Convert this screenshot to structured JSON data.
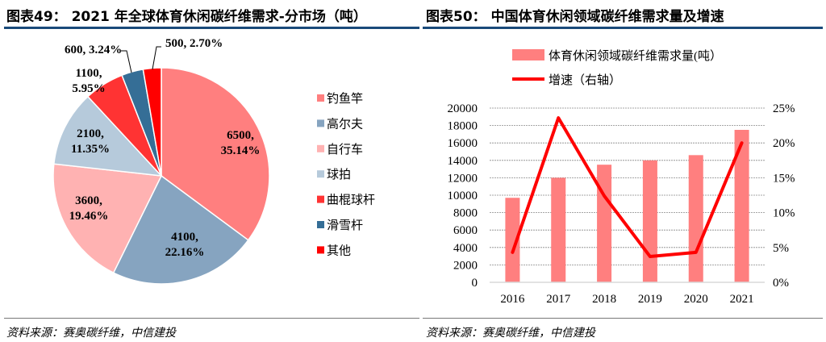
{
  "left": {
    "title": "图表49：  2021 年全球体育休闲碳纤维需求-分市场（吨）",
    "source": "资料来源：赛奥碳纤维，中信建投"
  },
  "right": {
    "title": "图表50：  中国体育休闲领域碳纤维需求量及增速",
    "source": "资料来源：赛奥碳纤维，中信建投"
  },
  "chart_data": [
    {
      "type": "pie",
      "title": "2021 年全球体育休闲碳纤维需求-分市场（吨）",
      "legend_position": "right",
      "slices": [
        {
          "name": "钓鱼竿",
          "value": 6500,
          "percent": "35.14%",
          "label_line1": "6500,",
          "label_line2": "35.14%",
          "color": "#FF7F7F"
        },
        {
          "name": "高尔夫",
          "value": 4100,
          "percent": "22.16%",
          "label_line1": "4100,",
          "label_line2": "22.16%",
          "color": "#86A4C0"
        },
        {
          "name": "自行车",
          "value": 3600,
          "percent": "19.46%",
          "label_line1": "3600,",
          "label_line2": "19.46%",
          "color": "#FFB2B2"
        },
        {
          "name": "球拍",
          "value": 2100,
          "percent": "11.35%",
          "label_line1": "2100,",
          "label_line2": "11.35%",
          "color": "#B6CADB"
        },
        {
          "name": "曲棍球杆",
          "value": 1100,
          "percent": "5.95%",
          "label_line1": "1100,",
          "label_line2": "5.95%",
          "color": "#FF3333"
        },
        {
          "name": "滑雪杆",
          "value": 600,
          "percent": "3.24%",
          "label_line1": "600, 3.24%",
          "label_line2": "",
          "color": "#356E96"
        },
        {
          "name": "其他",
          "value": 500,
          "percent": "2.70%",
          "label_line1": "500, 2.70%",
          "label_line2": "",
          "color": "#FF0000"
        }
      ]
    },
    {
      "type": "bar+line",
      "title": "中国体育休闲领域碳纤维需求量及增速",
      "categories": [
        "2016",
        "2017",
        "2018",
        "2019",
        "2020",
        "2021"
      ],
      "legend_position": "top",
      "grid": true,
      "y_left": {
        "range": [
          0,
          20000
        ],
        "ticks": [
          "0",
          "2000",
          "4000",
          "6000",
          "8000",
          "10000",
          "12000",
          "14000",
          "16000",
          "18000",
          "20000"
        ]
      },
      "y_right": {
        "range": [
          0,
          25
        ],
        "ticks": [
          "0%",
          "5%",
          "10%",
          "15%",
          "20%",
          "25%"
        ]
      },
      "series": [
        {
          "name": "体育休闲领域碳纤维需求量(吨）",
          "type": "bar",
          "axis": "left",
          "color": "#FF7F7F",
          "values": [
            9700,
            12000,
            13500,
            14000,
            14600,
            17500
          ]
        },
        {
          "name": "增速（右轴）",
          "type": "line",
          "axis": "right",
          "color": "#FF0000",
          "values": [
            4.3,
            23.6,
            12.4,
            3.7,
            4.3,
            20.0
          ]
        }
      ]
    }
  ]
}
